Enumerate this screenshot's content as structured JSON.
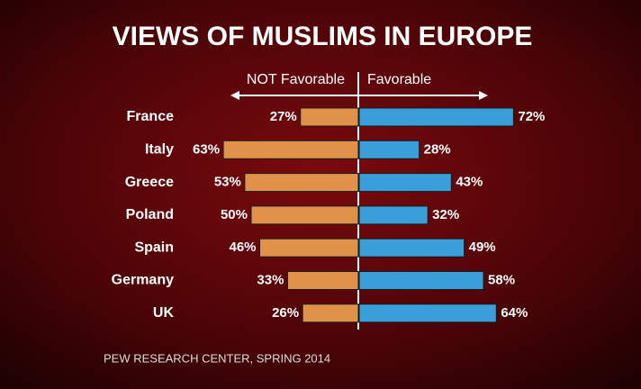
{
  "chart_data": {
    "type": "diverging-bar",
    "title": "VIEWS OF MUSLIMS IN EUROPE",
    "categories": [
      "France",
      "Italy",
      "Greece",
      "Poland",
      "Spain",
      "Germany",
      "UK"
    ],
    "series": [
      {
        "name": "NOT Favorable",
        "color": "#e0924a",
        "values": [
          27,
          63,
          53,
          50,
          46,
          33,
          26
        ],
        "value_labels": [
          "27%",
          "63%",
          "53%",
          "50%",
          "46%",
          "33%",
          "26%"
        ]
      },
      {
        "name": "Favorable",
        "color": "#3a9ed8",
        "values": [
          72,
          28,
          43,
          32,
          49,
          58,
          64
        ],
        "value_labels": [
          "72%",
          "28%",
          "43%",
          "32%",
          "49%",
          "58%",
          "64%"
        ]
      }
    ],
    "source": "PEW RESEARCH CENTER, SPRING 2014"
  }
}
